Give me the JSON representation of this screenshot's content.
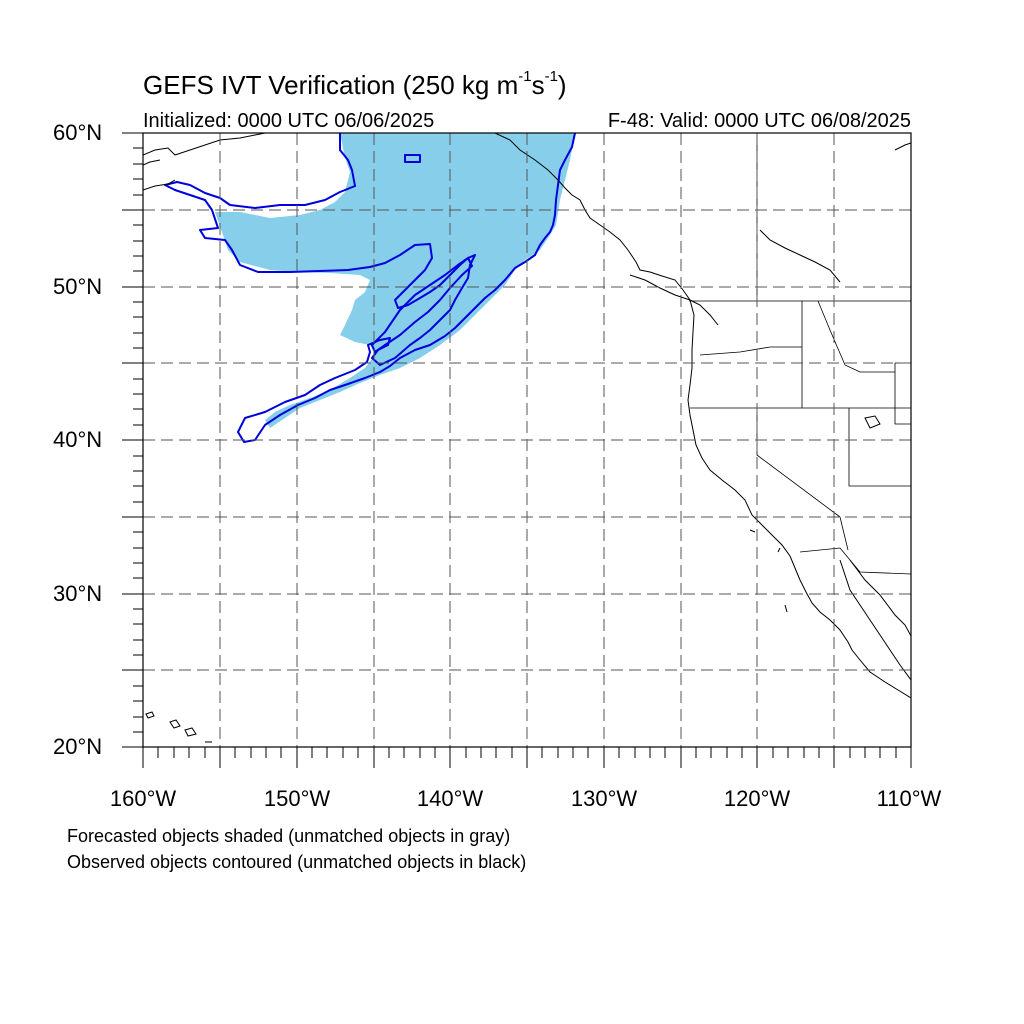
{
  "title": {
    "main_prefix": "GEFS IVT Verification (250 kg m",
    "exp1": "-1",
    "mid": "s",
    "exp2": "-1",
    "suffix": ")"
  },
  "initialized": "Initialized: 0000 UTC 06/06/2025",
  "valid": "F-48: Valid: 0000 UTC 06/08/2025",
  "axes": {
    "lat_labels": [
      "60°N",
      "50°N",
      "40°N",
      "30°N",
      "20°N"
    ],
    "lon_labels": [
      "160°W",
      "150°W",
      "140°W",
      "130°W",
      "120°W",
      "110°W"
    ]
  },
  "notes": [
    "Forecasted objects shaded (unmatched objects in gray)",
    "Observed objects contoured (unmatched objects in black)"
  ],
  "colors": {
    "forecast_fill": "#87CEEB",
    "observed_contour": "#0000DD",
    "grid": "#555555",
    "coast": "#000000"
  }
}
